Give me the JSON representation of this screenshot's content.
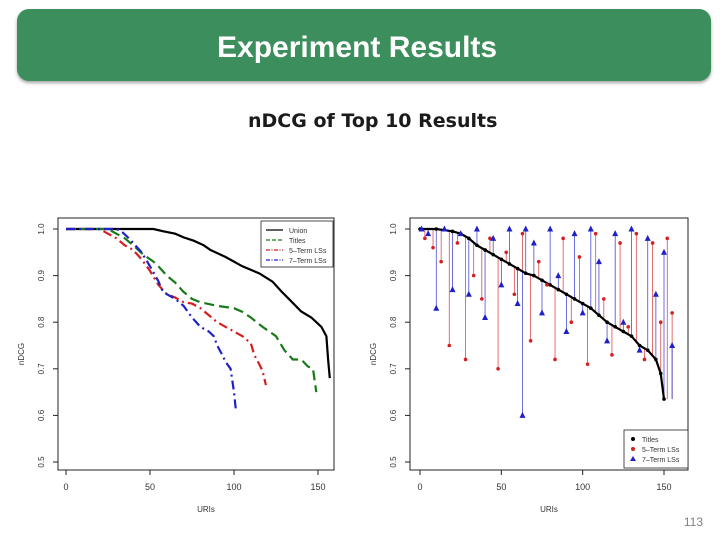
{
  "slide": {
    "title": "Experiment Results",
    "subtitle": "nDCG of Top 10 Results",
    "page_number": "113"
  },
  "chart_data": [
    {
      "type": "line",
      "xlabel": "URIs",
      "ylabel": "nDCG",
      "xlim": [
        0,
        157
      ],
      "ylim": [
        0.5,
        1.0
      ],
      "xticks": [
        "0",
        "50",
        "100",
        "150"
      ],
      "yticks": [
        "0.5",
        "0.6",
        "0.7",
        "0.8",
        "0.9",
        "1.0"
      ],
      "grid": false,
      "legend_position": "top-right",
      "series": [
        {
          "name": "Union",
          "color": "#000000",
          "dash": "solid",
          "x": [
            0,
            52,
            58,
            65,
            70,
            76,
            82,
            86,
            95,
            105,
            115,
            123,
            128,
            134,
            140,
            146,
            152,
            155,
            156,
            157
          ],
          "y": [
            1.0,
            1.0,
            0.995,
            0.99,
            0.982,
            0.975,
            0.965,
            0.955,
            0.94,
            0.92,
            0.905,
            0.887,
            0.867,
            0.845,
            0.823,
            0.81,
            0.79,
            0.77,
            0.72,
            0.68
          ]
        },
        {
          "name": "Titles",
          "color": "#1a7a1a",
          "dash": "dashed",
          "x": [
            0,
            25,
            30,
            35,
            40,
            46,
            52,
            55,
            60,
            65,
            70,
            75,
            80,
            90,
            100,
            105,
            110,
            117,
            125,
            130,
            135,
            140,
            144,
            147,
            149
          ],
          "y": [
            1.0,
            1.0,
            0.99,
            0.98,
            0.965,
            0.945,
            0.93,
            0.92,
            0.9,
            0.885,
            0.865,
            0.85,
            0.843,
            0.835,
            0.83,
            0.822,
            0.81,
            0.79,
            0.77,
            0.74,
            0.72,
            0.72,
            0.705,
            0.7,
            0.65
          ]
        },
        {
          "name": "5–Term LSs",
          "color": "#d42020",
          "dash": "dashdot",
          "x": [
            0,
            20,
            25,
            30,
            35,
            40,
            45,
            50,
            55,
            60,
            65,
            70,
            75,
            80,
            90,
            95,
            100,
            105,
            110,
            112,
            115,
            117,
            119
          ],
          "y": [
            1.0,
            1.0,
            0.99,
            0.98,
            0.965,
            0.955,
            0.935,
            0.91,
            0.88,
            0.86,
            0.853,
            0.843,
            0.84,
            0.83,
            0.8,
            0.79,
            0.78,
            0.77,
            0.755,
            0.73,
            0.71,
            0.695,
            0.665
          ]
        },
        {
          "name": "7–Term LSs",
          "color": "#1f20c8",
          "dash": "dashdot",
          "x": [
            0,
            30,
            33,
            36,
            40,
            45,
            50,
            55,
            57,
            60,
            65,
            70,
            75,
            80,
            85,
            88,
            90,
            93,
            95,
            98,
            100,
            101
          ],
          "y": [
            1.0,
            1.0,
            0.995,
            0.985,
            0.97,
            0.95,
            0.92,
            0.888,
            0.87,
            0.86,
            0.85,
            0.835,
            0.81,
            0.79,
            0.78,
            0.77,
            0.75,
            0.73,
            0.715,
            0.7,
            0.65,
            0.615
          ]
        }
      ]
    },
    {
      "type": "scatter",
      "xlabel": "URIs",
      "ylabel": "nDCG",
      "xlim": [
        -2,
        160
      ],
      "ylim": [
        0.5,
        1.0
      ],
      "xticks": [
        "0",
        "50",
        "100",
        "150"
      ],
      "yticks": [
        "0.5",
        "0.6",
        "0.7",
        "0.8",
        "0.9",
        "1.0"
      ],
      "grid": false,
      "legend_position": "bottom-right",
      "series": [
        {
          "name": "Titles",
          "color": "#000000",
          "marker": "circle",
          "x": [
            0,
            10,
            20,
            25,
            30,
            35,
            40,
            45,
            50,
            55,
            60,
            65,
            70,
            75,
            80,
            85,
            90,
            95,
            100,
            105,
            110,
            115,
            120,
            125,
            130,
            135,
            140,
            145,
            148,
            150
          ],
          "y": [
            1.0,
            1.0,
            0.995,
            0.99,
            0.98,
            0.965,
            0.955,
            0.945,
            0.935,
            0.925,
            0.915,
            0.905,
            0.9,
            0.89,
            0.88,
            0.87,
            0.86,
            0.85,
            0.84,
            0.83,
            0.815,
            0.8,
            0.79,
            0.78,
            0.77,
            0.75,
            0.74,
            0.72,
            0.69,
            0.635
          ]
        },
        {
          "name": "5–Term LSs",
          "color": "#d42020",
          "marker": "circle",
          "x": [
            3,
            8,
            13,
            18,
            23,
            28,
            33,
            38,
            43,
            48,
            53,
            58,
            63,
            68,
            73,
            78,
            83,
            88,
            93,
            98,
            103,
            108,
            113,
            118,
            123,
            128,
            133,
            138,
            143,
            148,
            152,
            155
          ],
          "y": [
            0.98,
            0.96,
            0.93,
            0.75,
            0.97,
            0.72,
            0.9,
            0.85,
            0.98,
            0.7,
            0.95,
            0.86,
            0.99,
            0.76,
            0.93,
            0.88,
            0.72,
            0.98,
            0.8,
            0.94,
            0.71,
            0.99,
            0.85,
            0.73,
            0.97,
            0.79,
            0.99,
            0.72,
            0.97,
            0.8,
            0.98,
            0.82
          ]
        },
        {
          "name": "7–Term LSs",
          "color": "#1f20c8",
          "marker": "triangle",
          "x": [
            1,
            5,
            10,
            15,
            20,
            25,
            30,
            35,
            40,
            45,
            50,
            55,
            60,
            63,
            65,
            70,
            75,
            80,
            85,
            90,
            95,
            100,
            105,
            110,
            115,
            120,
            125,
            130,
            135,
            140,
            145,
            150,
            155
          ],
          "y": [
            1.0,
            0.99,
            0.83,
            1.0,
            0.87,
            0.99,
            0.86,
            1.0,
            0.81,
            0.98,
            0.88,
            1.0,
            0.84,
            0.6,
            1.0,
            0.97,
            0.82,
            1.0,
            0.9,
            0.78,
            0.99,
            0.82,
            1.0,
            0.93,
            0.76,
            0.99,
            0.8,
            1.0,
            0.74,
            0.98,
            0.86,
            0.95,
            0.75
          ]
        }
      ]
    }
  ]
}
